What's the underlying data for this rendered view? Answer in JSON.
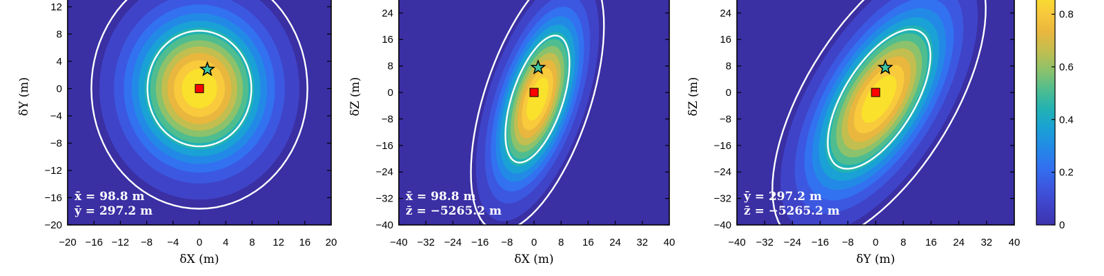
{
  "colors": {
    "background": "#3a2fa3",
    "levels": [
      "#3d33ad",
      "#3f43c8",
      "#3c58e0",
      "#3271f0",
      "#2389e6",
      "#1aa1d5",
      "#22b2b3",
      "#4fbd8f",
      "#8cc26b",
      "#c2be50",
      "#e9b73e",
      "#f8ca3c",
      "#f9e12c"
    ],
    "contour_line": "#ffffff",
    "true_marker": "#ff0000",
    "estimate_marker": "#3dc7a3"
  },
  "chart_data": [
    {
      "type": "heatmap",
      "xlabel": "δX (m)",
      "ylabel": "δY (m)",
      "xlim": [
        -20,
        20
      ],
      "ylim": [
        -20,
        14
      ],
      "xticks": [
        "−20",
        "−16",
        "−12",
        "−8",
        "−4",
        "0",
        "4",
        "8",
        "12",
        "16",
        "20"
      ],
      "xtick_values": [
        -20,
        -16,
        -12,
        -8,
        -4,
        0,
        4,
        8,
        12,
        16,
        20
      ],
      "yticks": [
        "12",
        "8",
        "4",
        "0",
        "−4",
        "−8",
        "−12",
        "−16",
        "−20"
      ],
      "ytick_values": [
        12,
        8,
        4,
        0,
        -4,
        -8,
        -12,
        -16,
        -20
      ],
      "distribution": {
        "center": [
          0,
          0
        ],
        "sigma_major": 7.2,
        "sigma_minor": 6.7,
        "angle_deg": 90
      },
      "true_location": [
        0,
        0
      ],
      "estimate": [
        1.2,
        2.8
      ],
      "means": [
        "x̄ = 98.8 m",
        "ȳ = 297.2 m"
      ]
    },
    {
      "type": "heatmap",
      "xlabel": "δX (m)",
      "ylabel": "δZ (m)",
      "xlim": [
        -40,
        40
      ],
      "ylim": [
        -40,
        30
      ],
      "xticks": [
        "−40",
        "−32",
        "−24",
        "−16",
        "−8",
        "0",
        "8",
        "16",
        "24",
        "32",
        "40"
      ],
      "xtick_values": [
        -40,
        -32,
        -24,
        -16,
        -8,
        0,
        8,
        16,
        24,
        32,
        40
      ],
      "yticks": [
        "24",
        "16",
        "8",
        "0",
        "−8",
        "−16",
        "−24",
        "−32",
        "−40"
      ],
      "ytick_values": [
        24,
        16,
        8,
        0,
        -8,
        -16,
        -24,
        -32,
        -40
      ],
      "distribution": {
        "center": [
          1,
          -2
        ],
        "sigma_major": 17,
        "sigma_minor": 6.4,
        "angle_deg": 72
      },
      "true_location": [
        0,
        0
      ],
      "estimate": [
        1.2,
        7.5
      ],
      "means": [
        "x̄ = 98.8 m",
        "z̄ = −5265.2 m"
      ]
    },
    {
      "type": "heatmap",
      "xlabel": "δY (m)",
      "ylabel": "δZ (m)",
      "xlim": [
        -40,
        40
      ],
      "ylim": [
        -40,
        30
      ],
      "xticks": [
        "−40",
        "−32",
        "−24",
        "−16",
        "−8",
        "0",
        "8",
        "16",
        "24",
        "32",
        "40"
      ],
      "xtick_values": [
        -40,
        -32,
        -24,
        -16,
        -8,
        0,
        8,
        16,
        24,
        32,
        40
      ],
      "yticks": [
        "24",
        "16",
        "8",
        "0",
        "−8",
        "−16",
        "−24",
        "−32",
        "−40"
      ],
      "ytick_values": [
        24,
        16,
        8,
        0,
        -8,
        -16,
        -24,
        -32,
        -40
      ],
      "distribution": {
        "center": [
          1,
          -2
        ],
        "sigma_major": 20,
        "sigma_minor": 8.8,
        "angle_deg": 60
      },
      "true_location": [
        0,
        0
      ],
      "estimate": [
        2.8,
        7.5
      ],
      "means": [
        "ȳ = 297.2 m",
        "z̄ = −5265.2 m"
      ]
    }
  ],
  "colorbar": {
    "ticks": [
      "0.8",
      "0.6",
      "0.4",
      "0.2",
      "0"
    ],
    "tick_values": [
      0.8,
      0.6,
      0.4,
      0.2,
      0
    ],
    "range": [
      0,
      0.88
    ]
  }
}
